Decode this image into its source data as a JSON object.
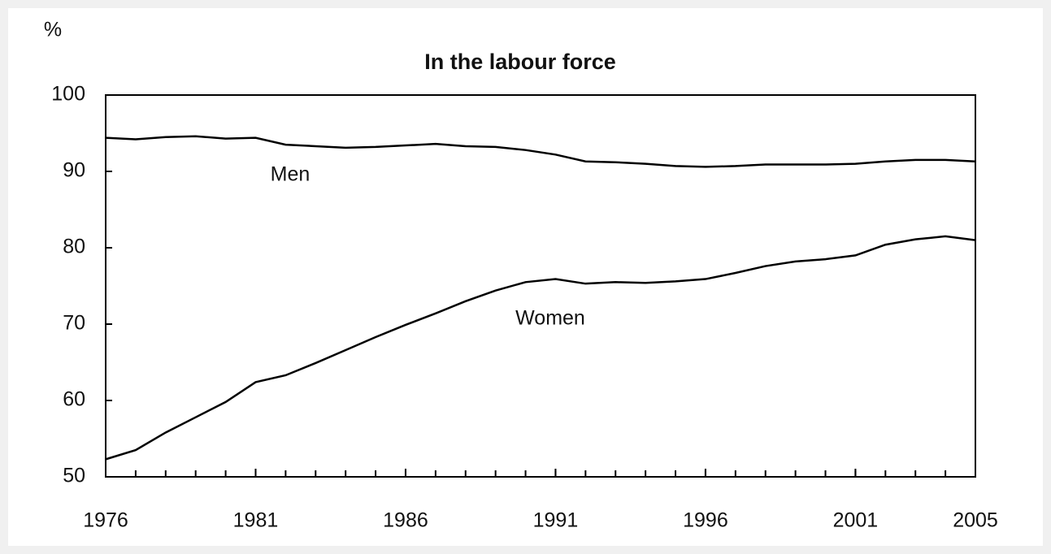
{
  "chart_data": {
    "type": "line",
    "title": "In the labour force",
    "y_label": "%",
    "x": [
      1976,
      1977,
      1978,
      1979,
      1980,
      1981,
      1982,
      1983,
      1984,
      1985,
      1986,
      1987,
      1988,
      1989,
      1990,
      1991,
      1992,
      1993,
      1994,
      1995,
      1996,
      1997,
      1998,
      1999,
      2000,
      2001,
      2002,
      2003,
      2004,
      2005
    ],
    "series": [
      {
        "name": "Men",
        "color": "#000000",
        "values": [
          94.4,
          94.2,
          94.5,
          94.6,
          94.3,
          94.4,
          93.5,
          93.3,
          93.1,
          93.2,
          93.4,
          93.6,
          93.3,
          93.2,
          92.8,
          92.2,
          91.3,
          91.2,
          91.0,
          90.7,
          90.6,
          90.7,
          90.9,
          90.9,
          90.9,
          91.0,
          91.3,
          91.5,
          91.5,
          91.3
        ]
      },
      {
        "name": "Women",
        "color": "#000000",
        "values": [
          52.3,
          53.5,
          55.8,
          57.8,
          59.8,
          62.4,
          63.3,
          64.9,
          66.6,
          68.3,
          69.9,
          71.4,
          73.0,
          74.4,
          75.5,
          75.9,
          75.3,
          75.5,
          75.4,
          75.6,
          75.9,
          76.7,
          77.6,
          78.2,
          78.5,
          79.0,
          80.4,
          81.1,
          81.5,
          81.0
        ]
      }
    ],
    "xlim": [
      1976,
      2005
    ],
    "xticks": [
      1976,
      1981,
      1986,
      1991,
      1996,
      2001,
      2005
    ],
    "ylim": [
      50,
      100
    ],
    "yticks": [
      50,
      60,
      70,
      80,
      90,
      100
    ],
    "grid": false
  }
}
